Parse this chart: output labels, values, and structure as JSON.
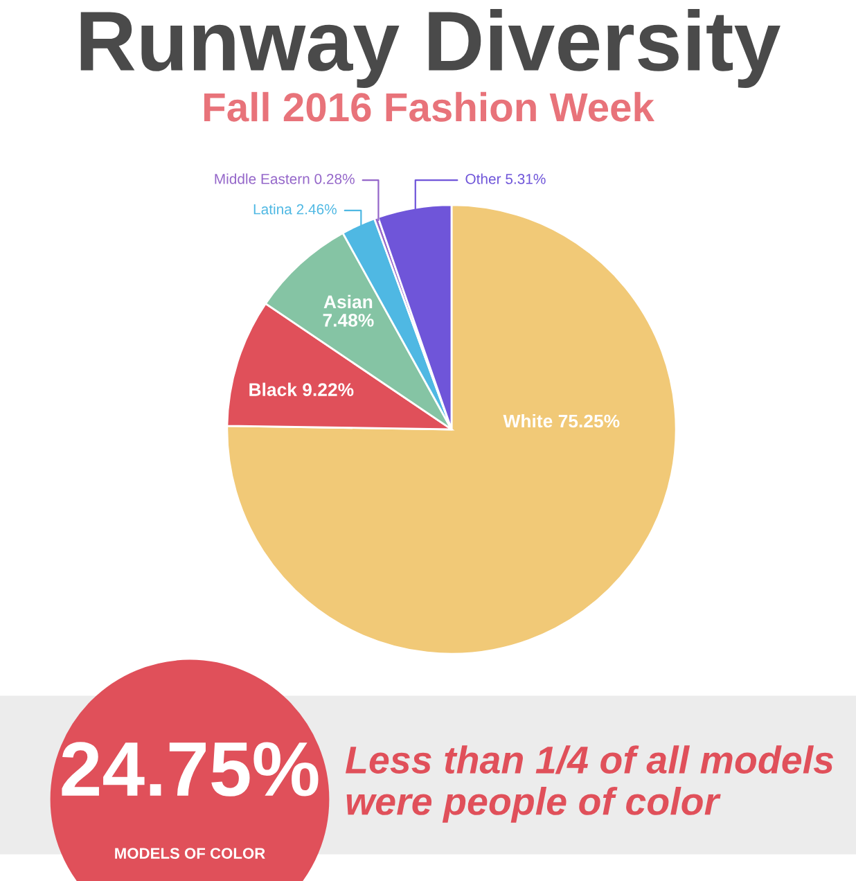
{
  "chart_data": {
    "type": "pie",
    "title": "Runway Diversity",
    "subtitle": "Fall 2016 Fashion Week",
    "categories": [
      "White",
      "Black",
      "Asian",
      "Latina",
      "Middle Eastern",
      "Other"
    ],
    "values": [
      75.25,
      9.22,
      7.48,
      2.46,
      0.28,
      5.31
    ],
    "value_labels": [
      "75.25%",
      "9.22%",
      "7.48%",
      "2.46%",
      "0.28%",
      "5.31%"
    ],
    "colors": [
      "#f1c977",
      "#e0505a",
      "#85c4a4",
      "#4fb8e3",
      "#9466c9",
      "#6f55d9"
    ],
    "annotations": [
      "24.75%",
      "MODELS OF COLOR",
      "Less than 1/4 of all models\nwere people of color"
    ]
  }
}
